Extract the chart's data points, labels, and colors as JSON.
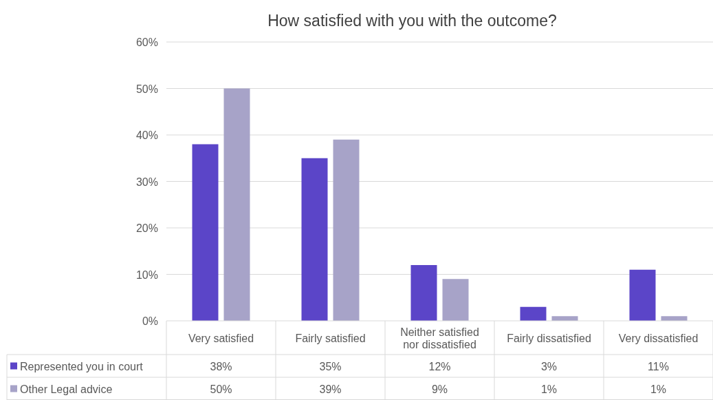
{
  "chart_data": {
    "type": "bar",
    "title": "How satisfied with you with the outcome?",
    "categories": [
      "Very satisfied",
      "Fairly satisfied",
      "Neither satisfied nor dissatisfied",
      "Fairly dissatisfied",
      "Very dissatisfied"
    ],
    "series": [
      {
        "name": "Represented you in court",
        "color": "#5b45c8",
        "values": [
          38,
          35,
          12,
          3,
          11
        ],
        "value_labels": [
          "38%",
          "35%",
          "12%",
          "3%",
          "11%"
        ]
      },
      {
        "name": "Other Legal advice",
        "color": "#a7a3c8",
        "values": [
          50,
          39,
          9,
          1,
          1
        ],
        "value_labels": [
          "50%",
          "39%",
          "9%",
          "1%",
          "1%"
        ]
      }
    ],
    "ylim": [
      0,
      60
    ],
    "yticks": [
      {
        "value": 0,
        "label": "0%"
      },
      {
        "value": 10,
        "label": "10%"
      },
      {
        "value": 20,
        "label": "20%"
      },
      {
        "value": 30,
        "label": "30%"
      },
      {
        "value": 40,
        "label": "40%"
      },
      {
        "value": 50,
        "label": "50%"
      },
      {
        "value": 60,
        "label": "60%"
      }
    ],
    "grid": "y",
    "legend": "bottom left"
  }
}
